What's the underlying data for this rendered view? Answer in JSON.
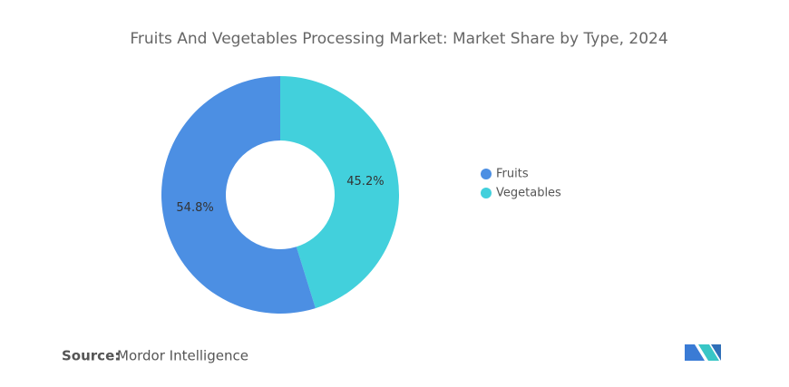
{
  "chart_data": {
    "type": "donut",
    "title": "Fruits And Vegetables Processing Market: Market Share by Type, 2024",
    "categories": [
      "Fruits",
      "Vegetables"
    ],
    "values": [
      54.8,
      45.2
    ],
    "value_labels": [
      "54.8%",
      "45.2%"
    ],
    "colors": [
      "#4c8fe3",
      "#42d0dc"
    ],
    "legend": "right"
  },
  "source": {
    "label": "Source:",
    "name": "Mordor Intelligence"
  }
}
